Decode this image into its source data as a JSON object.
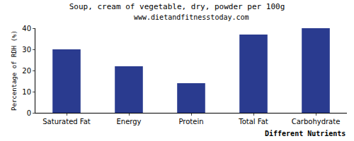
{
  "chart_data": {
    "type": "bar",
    "title": "Soup, cream of vegetable, dry, powder per 100g",
    "subtitle": "www.dietandfitnesstoday.com",
    "x_label": "Different Nutrients",
    "y_label": "Percentage of RDH (%)",
    "categories": [
      "Saturated Fat",
      "Energy",
      "Protein",
      "Total Fat",
      "Carbohydrate"
    ],
    "values": [
      30,
      22,
      14,
      37,
      40
    ],
    "color": "#2a3b8f",
    "ylim": [
      0,
      40
    ],
    "yticks": [
      0,
      10,
      20,
      30,
      40
    ],
    "grid": false
  }
}
